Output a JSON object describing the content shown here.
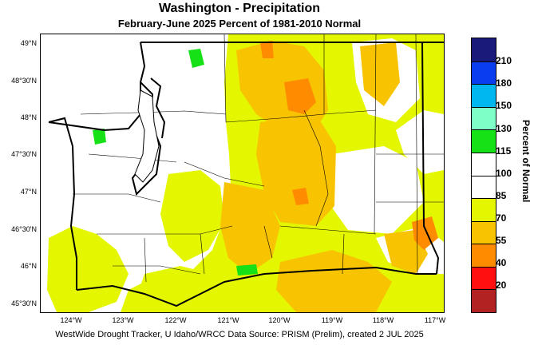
{
  "title": "Washington - Precipitation",
  "subtitle": "February-June 2025  Percent of 1981-2010 Normal",
  "footer": "WestWide Drought Tracker, U Idaho/WRCC Data Source: PRISM (Prelim), created  2 JUL 2025",
  "legend": {
    "title": "Percent of Normal",
    "values": [
      "210",
      "180",
      "150",
      "130",
      "115",
      "100",
      "85",
      "70",
      "55",
      "40",
      "20"
    ],
    "colors": [
      "#1a1a7a",
      "#0a3cf0",
      "#00b7f0",
      "#7fffc8",
      "#16e016",
      "#ffffff",
      "#ffffff",
      "#e4f700",
      "#f8c300",
      "#ff8c00",
      "#ff0f0f",
      "#b22222"
    ]
  },
  "axes": {
    "lat_labels": [
      "49°N",
      "48°30'N",
      "48°N",
      "47°30'N",
      "47°N",
      "46°30'N",
      "46°N",
      "45°30'N"
    ],
    "lon_labels": [
      "124°W",
      "123°W",
      "122°W",
      "121°W",
      "120°W",
      "119°W",
      "118°W",
      "117°W"
    ]
  },
  "map_colors": {
    "normal": "#ffffff",
    "below_85": "#e4f700",
    "below_70": "#f8c300",
    "below_55": "#ff8c00",
    "above_115": "#16e016",
    "boundary": "#000000"
  }
}
